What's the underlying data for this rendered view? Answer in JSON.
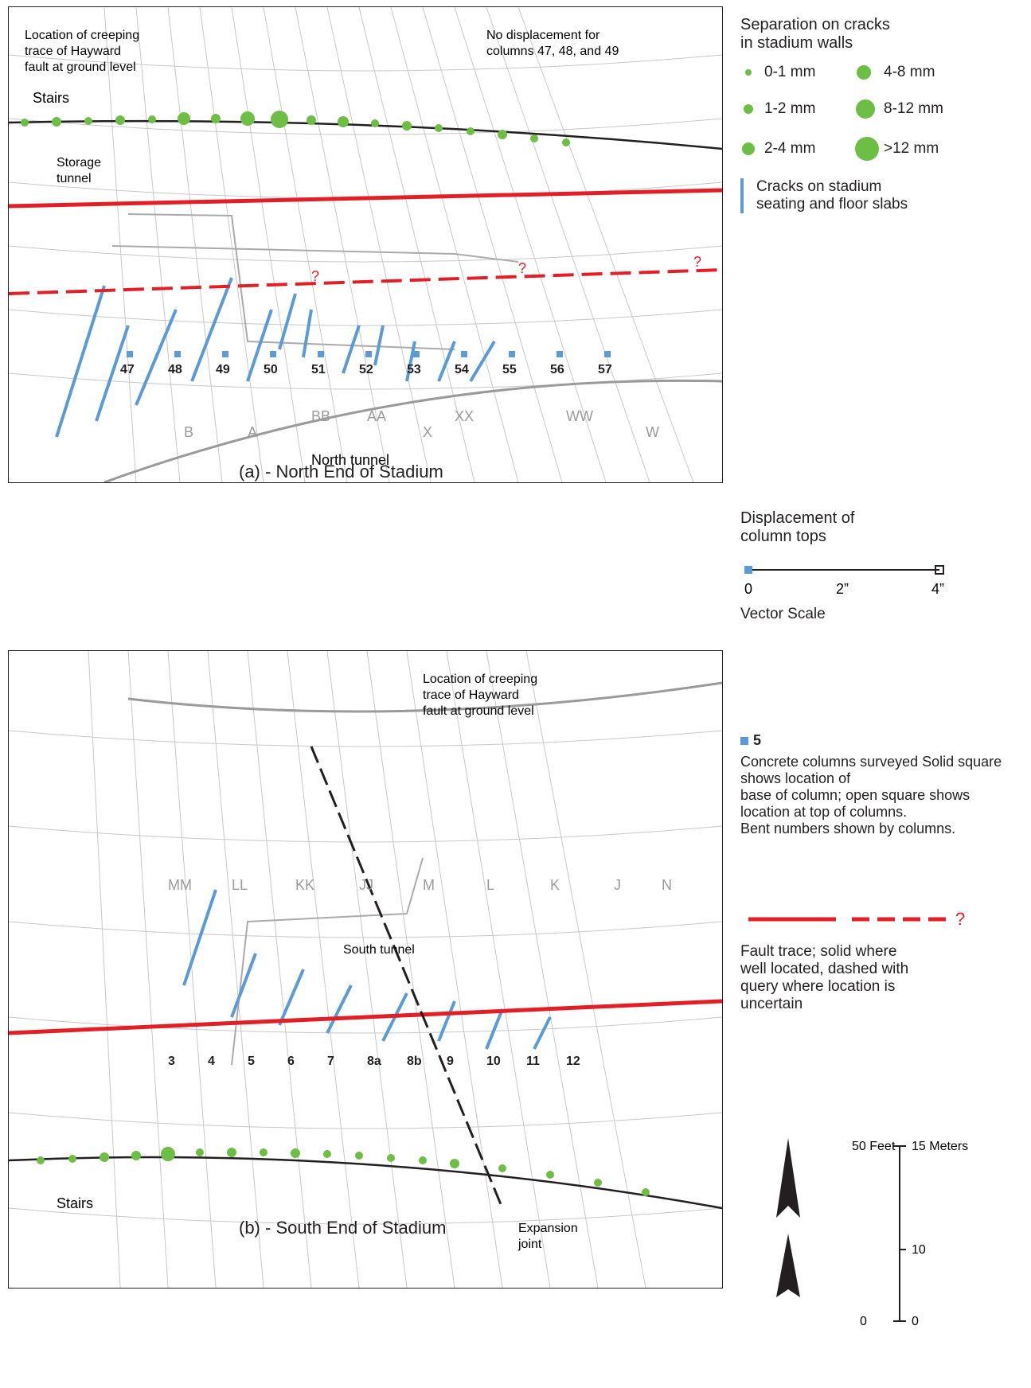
{
  "panels": {
    "north": {
      "caption": "(a) - North End of Stadium",
      "labels": {
        "stairs": "Stairs",
        "storage_tunnel_1": "Storage",
        "storage_tunnel_2": "tunnel",
        "north_tunnel": "North tunnel",
        "creep_1": "Location of creeping",
        "creep_2": "trace of Hayward",
        "creep_3": "fault at ground level",
        "nodisp_1": "No displacement for",
        "nodisp_2": "columns 47, 48, and 49"
      },
      "bent_numbers": [
        "47",
        "48",
        "49",
        "50",
        "51",
        "52",
        "53",
        "54",
        "55",
        "56",
        "57"
      ],
      "query_marks": [
        "?",
        "?",
        "?"
      ],
      "section_letters": [
        "W",
        "WW",
        "XX",
        "X",
        "AA",
        "BB",
        "A",
        "B"
      ]
    },
    "south": {
      "caption": "(b) - South End of Stadium",
      "labels": {
        "stairs": "Stairs",
        "south_tunnel": "South tunnel",
        "expansion_1": "Expansion",
        "expansion_2": "joint",
        "creep_1": "Location of creeping",
        "creep_2": "trace of Hayward",
        "creep_3": "fault at ground level"
      },
      "bent_numbers": [
        "3",
        "4",
        "5",
        "6",
        "7",
        "8a",
        "8b",
        "9",
        "10",
        "11",
        "12"
      ],
      "section_letters": [
        "MM",
        "LL",
        "KK",
        "JJ",
        "M",
        "L",
        "K",
        "J",
        "N"
      ]
    }
  },
  "legend": {
    "cracks_walls": {
      "title_1": "Separation on cracks",
      "title_2": "in stadium walls",
      "items": [
        "0-1 mm",
        "1-2 mm",
        "2-4 mm",
        "4-8 mm",
        "8-12 mm",
        ">12 mm"
      ]
    },
    "cracks_slabs": {
      "line_1": "Cracks on stadium",
      "line_2": "seating and floor slabs"
    },
    "displacement": {
      "title_1": "Displacement of",
      "title_2": "column tops",
      "ticks": [
        "0",
        "2”",
        "4”"
      ],
      "caption": "Vector Scale"
    },
    "columns": {
      "line_1": "Concrete columns surveyed Solid square shows location of",
      "line_2": "base of column; open square shows location at top of columns.",
      "line_3": "Bent numbers shown by columns.",
      "symbol_label": "5"
    },
    "fault": {
      "line_1": "Fault trace; solid where",
      "line_2": "well located, dashed with",
      "line_3": "query where location is",
      "line_4": "uncertain",
      "query": "?"
    },
    "scale_bar": {
      "feet_ticks": [
        "0",
        "50 Feet"
      ],
      "meter_ticks": [
        "0",
        "10",
        "15 Meters"
      ]
    }
  },
  "colors": {
    "fault": "#e21f26",
    "crack_dot": "#6cbe45",
    "crack_line": "#5b9bd5",
    "grid": "#c8c8c8",
    "wall": "#231f20"
  }
}
